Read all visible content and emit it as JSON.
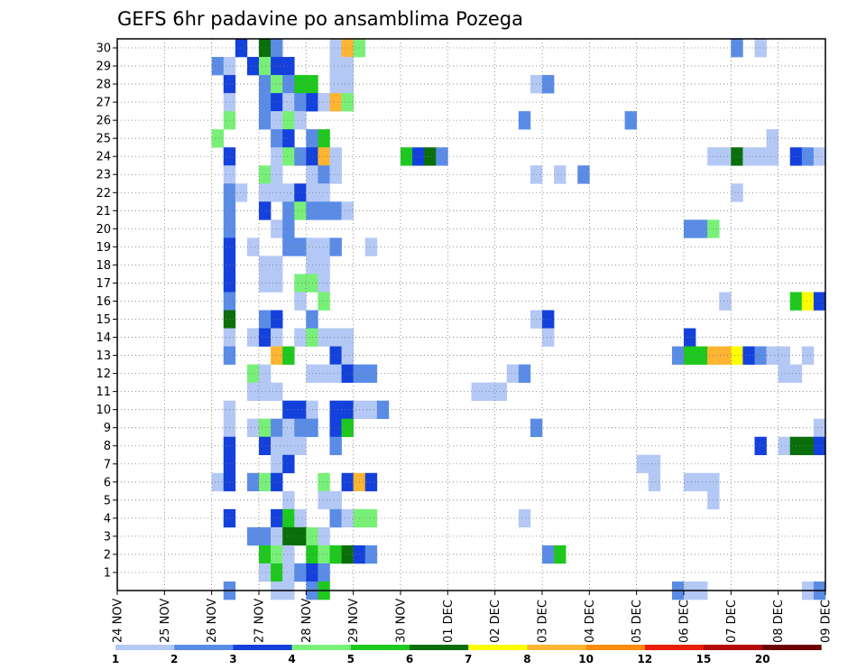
{
  "chart_data": {
    "type": "heatmap",
    "title": "GEFS 6hr padavine po ansamblima Pozega",
    "x_ticks": [
      "24 NOV",
      "25 NOV",
      "26 NOV",
      "27 NOV",
      "28 NOV",
      "29 NOV",
      "30 NOV",
      "01 DEC",
      "02 DEC",
      "03 DEC",
      "04 DEC",
      "05 DEC",
      "06 DEC",
      "07 DEC",
      "08 DEC",
      "09 DEC"
    ],
    "y_ticks": [
      1,
      2,
      3,
      4,
      5,
      6,
      7,
      8,
      9,
      10,
      11,
      12,
      13,
      14,
      15,
      16,
      17,
      18,
      19,
      20,
      21,
      22,
      23,
      24,
      25,
      26,
      27,
      28,
      29,
      30
    ],
    "xlim": [
      "24 NOV 00Z",
      "09 DEC 00Z"
    ],
    "ylim": [
      0,
      30
    ],
    "time_step_hours": 6,
    "grid": true,
    "colorbar": {
      "placement": "bottom",
      "labels": [
        "1",
        "2",
        "3",
        "4",
        "5",
        "6",
        "7",
        "8",
        "10",
        "12",
        "15",
        "20"
      ],
      "colors": [
        "#b4c8f5",
        "#5a8ce6",
        "#1440dc",
        "#78f078",
        "#1ec81e",
        "#0a6e0a",
        "#ffff00",
        "#ffb432",
        "#ff8c0a",
        "#e61e0a",
        "#b40a0a",
        "#6e0000"
      ]
    },
    "cells": [
      [
        30,
        "26 NOV 12Z",
        3
      ],
      [
        30,
        "27 NOV 00Z",
        6
      ],
      [
        30,
        "27 NOV 06Z",
        2
      ],
      [
        30,
        "28 NOV 12Z",
        1
      ],
      [
        30,
        "28 NOV 18Z",
        8
      ],
      [
        30,
        "29 NOV 00Z",
        4
      ],
      [
        30,
        "07 DEC 00Z",
        2
      ],
      [
        30,
        "07 DEC 12Z",
        1
      ],
      [
        29,
        "26 NOV 00Z",
        2
      ],
      [
        29,
        "26 NOV 06Z",
        1
      ],
      [
        29,
        "26 NOV 18Z",
        3
      ],
      [
        29,
        "27 NOV 00Z",
        4
      ],
      [
        29,
        "27 NOV 06Z",
        3
      ],
      [
        29,
        "27 NOV 12Z",
        3
      ],
      [
        29,
        "28 NOV 12Z",
        1
      ],
      [
        29,
        "28 NOV 18Z",
        1
      ],
      [
        28,
        "26 NOV 06Z",
        3
      ],
      [
        28,
        "27 NOV 00Z",
        2
      ],
      [
        28,
        "27 NOV 06Z",
        4
      ],
      [
        28,
        "27 NOV 12Z",
        2
      ],
      [
        28,
        "27 NOV 18Z",
        5
      ],
      [
        28,
        "28 NOV 00Z",
        5
      ],
      [
        28,
        "28 NOV 12Z",
        1
      ],
      [
        28,
        "28 NOV 18Z",
        1
      ],
      [
        28,
        "02 DEC 18Z",
        1
      ],
      [
        28,
        "03 DEC 00Z",
        2
      ],
      [
        27,
        "26 NOV 06Z",
        1
      ],
      [
        27,
        "27 NOV 00Z",
        2
      ],
      [
        27,
        "27 NOV 06Z",
        3
      ],
      [
        27,
        "27 NOV 12Z",
        1
      ],
      [
        27,
        "27 NOV 18Z",
        2
      ],
      [
        27,
        "28 NOV 00Z",
        3
      ],
      [
        27,
        "28 NOV 06Z",
        1
      ],
      [
        27,
        "28 NOV 12Z",
        8
      ],
      [
        27,
        "28 NOV 18Z",
        4
      ],
      [
        26,
        "26 NOV 06Z",
        4
      ],
      [
        26,
        "27 NOV 00Z",
        2
      ],
      [
        26,
        "27 NOV 06Z",
        1
      ],
      [
        26,
        "27 NOV 12Z",
        4
      ],
      [
        26,
        "27 NOV 18Z",
        1
      ],
      [
        26,
        "02 DEC 12Z",
        2
      ],
      [
        26,
        "04 DEC 18Z",
        2
      ],
      [
        25,
        "26 NOV 00Z",
        4
      ],
      [
        25,
        "27 NOV 06Z",
        2
      ],
      [
        25,
        "27 NOV 12Z",
        3
      ],
      [
        25,
        "28 NOV 00Z",
        2
      ],
      [
        25,
        "28 NOV 06Z",
        5
      ],
      [
        25,
        "07 DEC 18Z",
        1
      ],
      [
        24,
        "26 NOV 06Z",
        3
      ],
      [
        24,
        "27 NOV 06Z",
        1
      ],
      [
        24,
        "27 NOV 12Z",
        4
      ],
      [
        24,
        "27 NOV 18Z",
        2
      ],
      [
        24,
        "28 NOV 00Z",
        3
      ],
      [
        24,
        "28 NOV 06Z",
        8
      ],
      [
        24,
        "28 NOV 12Z",
        1
      ],
      [
        24,
        "30 NOV 00Z",
        5
      ],
      [
        24,
        "30 NOV 06Z",
        3
      ],
      [
        24,
        "30 NOV 12Z",
        6
      ],
      [
        24,
        "30 NOV 18Z",
        2
      ],
      [
        24,
        "06 DEC 12Z",
        1
      ],
      [
        24,
        "06 DEC 18Z",
        1
      ],
      [
        24,
        "07 DEC 00Z",
        6
      ],
      [
        24,
        "07 DEC 06Z",
        1
      ],
      [
        24,
        "07 DEC 12Z",
        1
      ],
      [
        24,
        "07 DEC 18Z",
        1
      ],
      [
        24,
        "08 DEC 06Z",
        3
      ],
      [
        24,
        "08 DEC 12Z",
        2
      ],
      [
        24,
        "08 DEC 18Z",
        1
      ],
      [
        23,
        "26 NOV 06Z",
        1
      ],
      [
        23,
        "27 NOV 00Z",
        4
      ],
      [
        23,
        "27 NOV 06Z",
        1
      ],
      [
        23,
        "28 NOV 00Z",
        1
      ],
      [
        23,
        "28 NOV 06Z",
        2
      ],
      [
        23,
        "28 NOV 12Z",
        1
      ],
      [
        23,
        "02 DEC 18Z",
        1
      ],
      [
        23,
        "03 DEC 06Z",
        1
      ],
      [
        23,
        "03 DEC 18Z",
        2
      ],
      [
        22,
        "26 NOV 06Z",
        2
      ],
      [
        22,
        "26 NOV 12Z",
        1
      ],
      [
        22,
        "27 NOV 00Z",
        1
      ],
      [
        22,
        "27 NOV 06Z",
        1
      ],
      [
        22,
        "27 NOV 12Z",
        1
      ],
      [
        22,
        "27 NOV 18Z",
        3
      ],
      [
        22,
        "28 NOV 00Z",
        1
      ],
      [
        22,
        "28 NOV 06Z",
        1
      ],
      [
        22,
        "07 DEC 00Z",
        1
      ],
      [
        21,
        "26 NOV 06Z",
        2
      ],
      [
        21,
        "27 NOV 00Z",
        3
      ],
      [
        21,
        "27 NOV 12Z",
        2
      ],
      [
        21,
        "27 NOV 18Z",
        4
      ],
      [
        21,
        "28 NOV 00Z",
        2
      ],
      [
        21,
        "28 NOV 06Z",
        2
      ],
      [
        21,
        "28 NOV 12Z",
        2
      ],
      [
        21,
        "28 NOV 18Z",
        1
      ],
      [
        20,
        "26 NOV 06Z",
        2
      ],
      [
        20,
        "27 NOV 06Z",
        1
      ],
      [
        20,
        "27 NOV 12Z",
        2
      ],
      [
        20,
        "06 DEC 00Z",
        2
      ],
      [
        20,
        "06 DEC 06Z",
        2
      ],
      [
        20,
        "06 DEC 12Z",
        4
      ],
      [
        19,
        "26 NOV 06Z",
        3
      ],
      [
        19,
        "26 NOV 18Z",
        1
      ],
      [
        19,
        "27 NOV 12Z",
        2
      ],
      [
        19,
        "27 NOV 18Z",
        2
      ],
      [
        19,
        "28 NOV 00Z",
        1
      ],
      [
        19,
        "28 NOV 06Z",
        1
      ],
      [
        19,
        "28 NOV 12Z",
        2
      ],
      [
        19,
        "29 NOV 06Z",
        1
      ],
      [
        18,
        "26 NOV 06Z",
        3
      ],
      [
        18,
        "27 NOV 00Z",
        1
      ],
      [
        18,
        "27 NOV 06Z",
        1
      ],
      [
        18,
        "28 NOV 00Z",
        1
      ],
      [
        18,
        "28 NOV 06Z",
        1
      ],
      [
        17,
        "26 NOV 06Z",
        3
      ],
      [
        17,
        "27 NOV 00Z",
        1
      ],
      [
        17,
        "27 NOV 06Z",
        1
      ],
      [
        17,
        "27 NOV 18Z",
        4
      ],
      [
        17,
        "28 NOV 00Z",
        4
      ],
      [
        17,
        "28 NOV 06Z",
        1
      ],
      [
        16,
        "26 NOV 06Z",
        2
      ],
      [
        16,
        "27 NOV 18Z",
        1
      ],
      [
        16,
        "28 NOV 06Z",
        4
      ],
      [
        16,
        "06 DEC 18Z",
        1
      ],
      [
        16,
        "08 DEC 06Z",
        5
      ],
      [
        16,
        "08 DEC 12Z",
        7
      ],
      [
        16,
        "08 DEC 18Z",
        3
      ],
      [
        15,
        "26 NOV 06Z",
        6
      ],
      [
        15,
        "27 NOV 00Z",
        2
      ],
      [
        15,
        "27 NOV 06Z",
        3
      ],
      [
        15,
        "28 NOV 00Z",
        2
      ],
      [
        15,
        "02 DEC 18Z",
        1
      ],
      [
        15,
        "03 DEC 00Z",
        3
      ],
      [
        14,
        "26 NOV 06Z",
        1
      ],
      [
        14,
        "26 NOV 18Z",
        1
      ],
      [
        14,
        "27 NOV 00Z",
        3
      ],
      [
        14,
        "27 NOV 06Z",
        1
      ],
      [
        14,
        "27 NOV 18Z",
        1
      ],
      [
        14,
        "28 NOV 00Z",
        4
      ],
      [
        14,
        "28 NOV 06Z",
        1
      ],
      [
        14,
        "28 NOV 12Z",
        1
      ],
      [
        14,
        "28 NOV 18Z",
        1
      ],
      [
        14,
        "03 DEC 00Z",
        1
      ],
      [
        14,
        "06 DEC 00Z",
        3
      ],
      [
        13,
        "26 NOV 06Z",
        2
      ],
      [
        13,
        "27 NOV 06Z",
        8
      ],
      [
        13,
        "27 NOV 12Z",
        5
      ],
      [
        13,
        "28 NOV 12Z",
        3
      ],
      [
        13,
        "28 NOV 18Z",
        1
      ],
      [
        13,
        "05 DEC 18Z",
        2
      ],
      [
        13,
        "06 DEC 00Z",
        5
      ],
      [
        13,
        "06 DEC 06Z",
        5
      ],
      [
        13,
        "06 DEC 12Z",
        8
      ],
      [
        13,
        "06 DEC 18Z",
        8
      ],
      [
        13,
        "07 DEC 00Z",
        7
      ],
      [
        13,
        "07 DEC 06Z",
        3
      ],
      [
        13,
        "07 DEC 12Z",
        2
      ],
      [
        13,
        "07 DEC 18Z",
        1
      ],
      [
        13,
        "08 DEC 00Z",
        1
      ],
      [
        13,
        "08 DEC 12Z",
        1
      ],
      [
        12,
        "26 NOV 18Z",
        4
      ],
      [
        12,
        "27 NOV 00Z",
        1
      ],
      [
        12,
        "28 NOV 00Z",
        1
      ],
      [
        12,
        "28 NOV 06Z",
        1
      ],
      [
        12,
        "28 NOV 12Z",
        1
      ],
      [
        12,
        "28 NOV 18Z",
        3
      ],
      [
        12,
        "29 NOV 00Z",
        2
      ],
      [
        12,
        "29 NOV 06Z",
        2
      ],
      [
        12,
        "02 DEC 06Z",
        1
      ],
      [
        12,
        "02 DEC 12Z",
        2
      ],
      [
        12,
        "08 DEC 00Z",
        1
      ],
      [
        12,
        "08 DEC 06Z",
        1
      ],
      [
        11,
        "26 NOV 18Z",
        1
      ],
      [
        11,
        "27 NOV 00Z",
        1
      ],
      [
        11,
        "27 NOV 06Z",
        1
      ],
      [
        11,
        "01 DEC 12Z",
        1
      ],
      [
        11,
        "01 DEC 18Z",
        1
      ],
      [
        11,
        "02 DEC 00Z",
        1
      ],
      [
        10,
        "26 NOV 06Z",
        1
      ],
      [
        10,
        "27 NOV 12Z",
        3
      ],
      [
        10,
        "27 NOV 18Z",
        3
      ],
      [
        10,
        "28 NOV 00Z",
        1
      ],
      [
        10,
        "28 NOV 12Z",
        3
      ],
      [
        10,
        "28 NOV 18Z",
        3
      ],
      [
        10,
        "29 NOV 00Z",
        1
      ],
      [
        10,
        "29 NOV 06Z",
        1
      ],
      [
        10,
        "29 NOV 12Z",
        2
      ],
      [
        9,
        "26 NOV 06Z",
        1
      ],
      [
        9,
        "26 NOV 18Z",
        1
      ],
      [
        9,
        "27 NOV 00Z",
        4
      ],
      [
        9,
        "27 NOV 06Z",
        2
      ],
      [
        9,
        "27 NOV 12Z",
        1
      ],
      [
        9,
        "27 NOV 18Z",
        2
      ],
      [
        9,
        "28 NOV 00Z",
        2
      ],
      [
        9,
        "28 NOV 12Z",
        3
      ],
      [
        9,
        "28 NOV 18Z",
        5
      ],
      [
        9,
        "02 DEC 18Z",
        2
      ],
      [
        9,
        "08 DEC 18Z",
        1
      ],
      [
        8,
        "26 NOV 06Z",
        3
      ],
      [
        8,
        "27 NOV 00Z",
        3
      ],
      [
        8,
        "27 NOV 06Z",
        1
      ],
      [
        8,
        "27 NOV 12Z",
        1
      ],
      [
        8,
        "27 NOV 18Z",
        1
      ],
      [
        8,
        "28 NOV 12Z",
        2
      ],
      [
        8,
        "07 DEC 12Z",
        3
      ],
      [
        8,
        "08 DEC 00Z",
        1
      ],
      [
        8,
        "08 DEC 06Z",
        6
      ],
      [
        8,
        "08 DEC 12Z",
        6
      ],
      [
        8,
        "08 DEC 18Z",
        3
      ],
      [
        7,
        "26 NOV 06Z",
        3
      ],
      [
        7,
        "27 NOV 06Z",
        1
      ],
      [
        7,
        "27 NOV 12Z",
        3
      ],
      [
        7,
        "05 DEC 00Z",
        1
      ],
      [
        7,
        "05 DEC 06Z",
        1
      ],
      [
        6,
        "26 NOV 00Z",
        1
      ],
      [
        6,
        "26 NOV 06Z",
        3
      ],
      [
        6,
        "26 NOV 18Z",
        2
      ],
      [
        6,
        "27 NOV 00Z",
        4
      ],
      [
        6,
        "27 NOV 06Z",
        3
      ],
      [
        6,
        "28 NOV 06Z",
        4
      ],
      [
        6,
        "28 NOV 18Z",
        3
      ],
      [
        6,
        "29 NOV 00Z",
        8
      ],
      [
        6,
        "29 NOV 06Z",
        3
      ],
      [
        6,
        "05 DEC 06Z",
        1
      ],
      [
        6,
        "06 DEC 00Z",
        1
      ],
      [
        6,
        "06 DEC 06Z",
        1
      ],
      [
        6,
        "06 DEC 12Z",
        1
      ],
      [
        5,
        "27 NOV 12Z",
        1
      ],
      [
        5,
        "28 NOV 06Z",
        1
      ],
      [
        5,
        "28 NOV 12Z",
        1
      ],
      [
        5,
        "06 DEC 12Z",
        1
      ],
      [
        4,
        "26 NOV 06Z",
        3
      ],
      [
        4,
        "27 NOV 06Z",
        3
      ],
      [
        4,
        "27 NOV 12Z",
        5
      ],
      [
        4,
        "27 NOV 18Z",
        1
      ],
      [
        4,
        "28 NOV 12Z",
        2
      ],
      [
        4,
        "28 NOV 18Z",
        1
      ],
      [
        4,
        "29 NOV 00Z",
        4
      ],
      [
        4,
        "29 NOV 06Z",
        4
      ],
      [
        4,
        "02 DEC 12Z",
        1
      ],
      [
        3,
        "26 NOV 18Z",
        2
      ],
      [
        3,
        "27 NOV 00Z",
        2
      ],
      [
        3,
        "27 NOV 06Z",
        1
      ],
      [
        3,
        "27 NOV 12Z",
        6
      ],
      [
        3,
        "27 NOV 18Z",
        6
      ],
      [
        3,
        "28 NOV 00Z",
        4
      ],
      [
        3,
        "28 NOV 06Z",
        1
      ],
      [
        2,
        "27 NOV 00Z",
        5
      ],
      [
        2,
        "27 NOV 06Z",
        4
      ],
      [
        2,
        "27 NOV 12Z",
        1
      ],
      [
        2,
        "28 NOV 00Z",
        5
      ],
      [
        2,
        "28 NOV 06Z",
        4
      ],
      [
        2,
        "28 NOV 12Z",
        5
      ],
      [
        2,
        "28 NOV 18Z",
        6
      ],
      [
        2,
        "29 NOV 00Z",
        3
      ],
      [
        2,
        "29 NOV 06Z",
        2
      ],
      [
        2,
        "03 DEC 00Z",
        2
      ],
      [
        2,
        "03 DEC 06Z",
        5
      ],
      [
        1,
        "27 NOV 00Z",
        1
      ],
      [
        1,
        "27 NOV 06Z",
        5
      ],
      [
        1,
        "27 NOV 12Z",
        1
      ],
      [
        1,
        "27 NOV 18Z",
        2
      ],
      [
        1,
        "28 NOV 00Z",
        3
      ],
      [
        1,
        "28 NOV 06Z",
        2
      ],
      [
        0,
        "26 NOV 06Z",
        2
      ],
      [
        0,
        "27 NOV 06Z",
        1
      ],
      [
        0,
        "27 NOV 12Z",
        1
      ],
      [
        0,
        "28 NOV 00Z",
        2
      ],
      [
        0,
        "28 NOV 06Z",
        5
      ],
      [
        0,
        "05 DEC 18Z",
        2
      ],
      [
        0,
        "06 DEC 00Z",
        1
      ],
      [
        0,
        "06 DEC 06Z",
        1
      ],
      [
        0,
        "08 DEC 12Z",
        1
      ],
      [
        0,
        "08 DEC 18Z",
        2
      ]
    ]
  }
}
